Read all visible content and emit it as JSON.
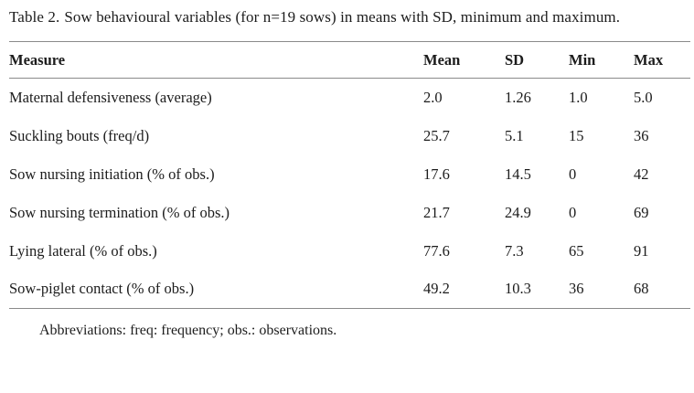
{
  "caption": {
    "label": "Table 2.",
    "text": "Sow behavioural variables (for n=19 sows) in means with SD, minimum and maximum."
  },
  "table": {
    "columns": [
      "Measure",
      "Mean",
      "SD",
      "Min",
      "Max"
    ],
    "rows": [
      [
        "Maternal defensiveness (average)",
        "2.0",
        "1.26",
        "1.0",
        "5.0"
      ],
      [
        "Suckling bouts (freq/d)",
        "25.7",
        "5.1",
        "15",
        "36"
      ],
      [
        "Sow nursing initiation (% of obs.)",
        "17.6",
        "14.5",
        "0",
        "42"
      ],
      [
        "Sow nursing termination (% of obs.)",
        "21.7",
        "24.9",
        "0",
        "69"
      ],
      [
        "Lying lateral (% of obs.)",
        "77.6",
        "7.3",
        "65",
        "91"
      ],
      [
        "Sow-piglet contact (% of obs.)",
        "49.2",
        "10.3",
        "36",
        "68"
      ]
    ]
  },
  "footnote": "Abbreviations: freq: frequency; obs.: observations.",
  "colors": {
    "background": "#ffffff",
    "text": "#1c1c1c",
    "rule": "#8a8a8a"
  }
}
